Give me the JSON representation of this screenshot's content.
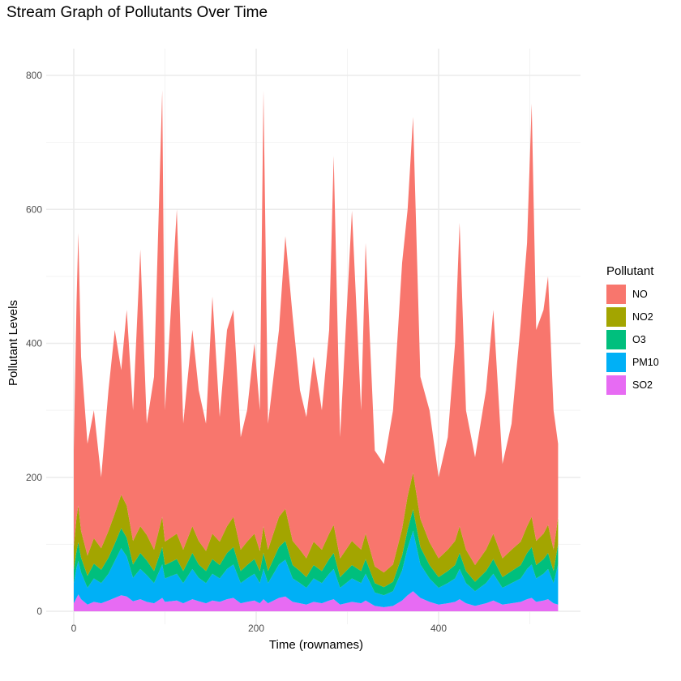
{
  "chart_data": {
    "type": "area",
    "stacked": true,
    "title": "Stream Graph of Pollutants Over Time",
    "xlabel": "Time (rownames)",
    "ylabel": "Pollutant Levels",
    "xlim": [
      -30,
      556
    ],
    "ylim": [
      0,
      840
    ],
    "x_ticks": [
      0,
      200,
      400
    ],
    "y_ticks": [
      0,
      200,
      400,
      600,
      800
    ],
    "x_tick_labels": [
      "0",
      "200",
      "400"
    ],
    "y_tick_labels": [
      "0",
      "200",
      "400",
      "600",
      "800"
    ],
    "grid": true,
    "legend": {
      "title": "Pollutant",
      "position": "right"
    },
    "x": [
      0,
      3,
      5,
      8,
      15,
      22,
      30,
      38,
      45,
      52,
      58,
      65,
      73,
      80,
      88,
      97,
      100,
      113,
      120,
      130,
      137,
      145,
      152,
      160,
      168,
      175,
      183,
      190,
      198,
      204,
      208,
      213,
      225,
      232,
      240,
      248,
      255,
      263,
      272,
      280,
      285,
      292,
      305,
      315,
      320,
      330,
      340,
      350,
      360,
      366,
      372,
      380,
      390,
      400,
      410,
      418,
      423,
      430,
      440,
      452,
      460,
      470,
      480,
      490,
      497,
      502,
      507,
      515,
      520,
      526,
      531
    ],
    "series": [
      {
        "name": "NO",
        "color": "#F8766D",
        "values": [
          143,
          320,
          407,
          260,
          167,
          191,
          106,
          210,
          274,
          186,
          292,
          195,
          413,
          166,
          258,
          637,
          196,
          484,
          188,
          293,
          225,
          190,
          354,
          186,
          293,
          309,
          168,
          196,
          284,
          210,
          650,
          188,
          279,
          407,
          335,
          238,
          211,
          276,
          208,
          304,
          551,
          181,
          493,
          208,
          434,
          173,
          162,
          230,
          397,
          428,
          531,
          212,
          197,
          121,
          168,
          295,
          453,
          208,
          161,
          238,
          334,
          141,
          188,
          326,
          423,
          617,
          315,
          334,
          371,
          208,
          110
        ]
      },
      {
        "name": "NO2",
        "color": "#A3A500",
        "values": [
          35,
          50,
          55,
          40,
          30,
          38,
          32,
          40,
          45,
          50,
          48,
          35,
          40,
          38,
          32,
          45,
          35,
          38,
          32,
          40,
          35,
          30,
          38,
          35,
          40,
          45,
          32,
          35,
          38,
          30,
          40,
          32,
          45,
          48,
          36,
          32,
          28,
          35,
          32,
          38,
          42,
          28,
          36,
          32,
          38,
          25,
          22,
          26,
          40,
          50,
          55,
          42,
          34,
          28,
          32,
          36,
          40,
          32,
          25,
          32,
          38,
          28,
          32,
          35,
          40,
          45,
          36,
          38,
          42,
          32,
          40
        ]
      },
      {
        "name": "O3",
        "color": "#00BF7D",
        "values": [
          20,
          25,
          28,
          22,
          18,
          22,
          20,
          24,
          26,
          30,
          28,
          20,
          24,
          22,
          18,
          26,
          20,
          22,
          18,
          24,
          20,
          18,
          22,
          20,
          24,
          26,
          18,
          20,
          22,
          18,
          24,
          18,
          26,
          28,
          20,
          18,
          16,
          20,
          18,
          22,
          24,
          16,
          20,
          18,
          22,
          14,
          12,
          14,
          22,
          28,
          32,
          26,
          20,
          16,
          18,
          20,
          24,
          18,
          14,
          18,
          22,
          16,
          18,
          20,
          24,
          26,
          20,
          22,
          24,
          18,
          30
        ]
      },
      {
        "name": "PM10",
        "color": "#00B0F6",
        "values": [
          30,
          45,
          50,
          40,
          25,
          35,
          30,
          40,
          55,
          70,
          60,
          35,
          45,
          40,
          30,
          50,
          35,
          40,
          30,
          45,
          35,
          30,
          40,
          35,
          45,
          50,
          30,
          35,
          40,
          30,
          45,
          30,
          50,
          55,
          35,
          30,
          25,
          35,
          30,
          40,
          45,
          25,
          35,
          30,
          40,
          20,
          18,
          22,
          45,
          70,
          90,
          50,
          35,
          25,
          30,
          35,
          45,
          30,
          22,
          30,
          40,
          25,
          30,
          35,
          45,
          50,
          35,
          40,
          45,
          30,
          60
        ]
      },
      {
        "name": "SO2",
        "color": "#E76BF3",
        "values": [
          12,
          20,
          25,
          18,
          10,
          14,
          12,
          16,
          20,
          24,
          22,
          15,
          18,
          14,
          12,
          20,
          14,
          16,
          12,
          18,
          15,
          12,
          16,
          14,
          18,
          20,
          12,
          14,
          16,
          12,
          18,
          12,
          20,
          22,
          14,
          12,
          10,
          14,
          12,
          16,
          18,
          10,
          14,
          12,
          16,
          8,
          6,
          8,
          16,
          24,
          30,
          20,
          14,
          10,
          12,
          14,
          18,
          12,
          8,
          12,
          16,
          10,
          12,
          14,
          18,
          20,
          14,
          16,
          18,
          12,
          10
        ]
      }
    ]
  }
}
